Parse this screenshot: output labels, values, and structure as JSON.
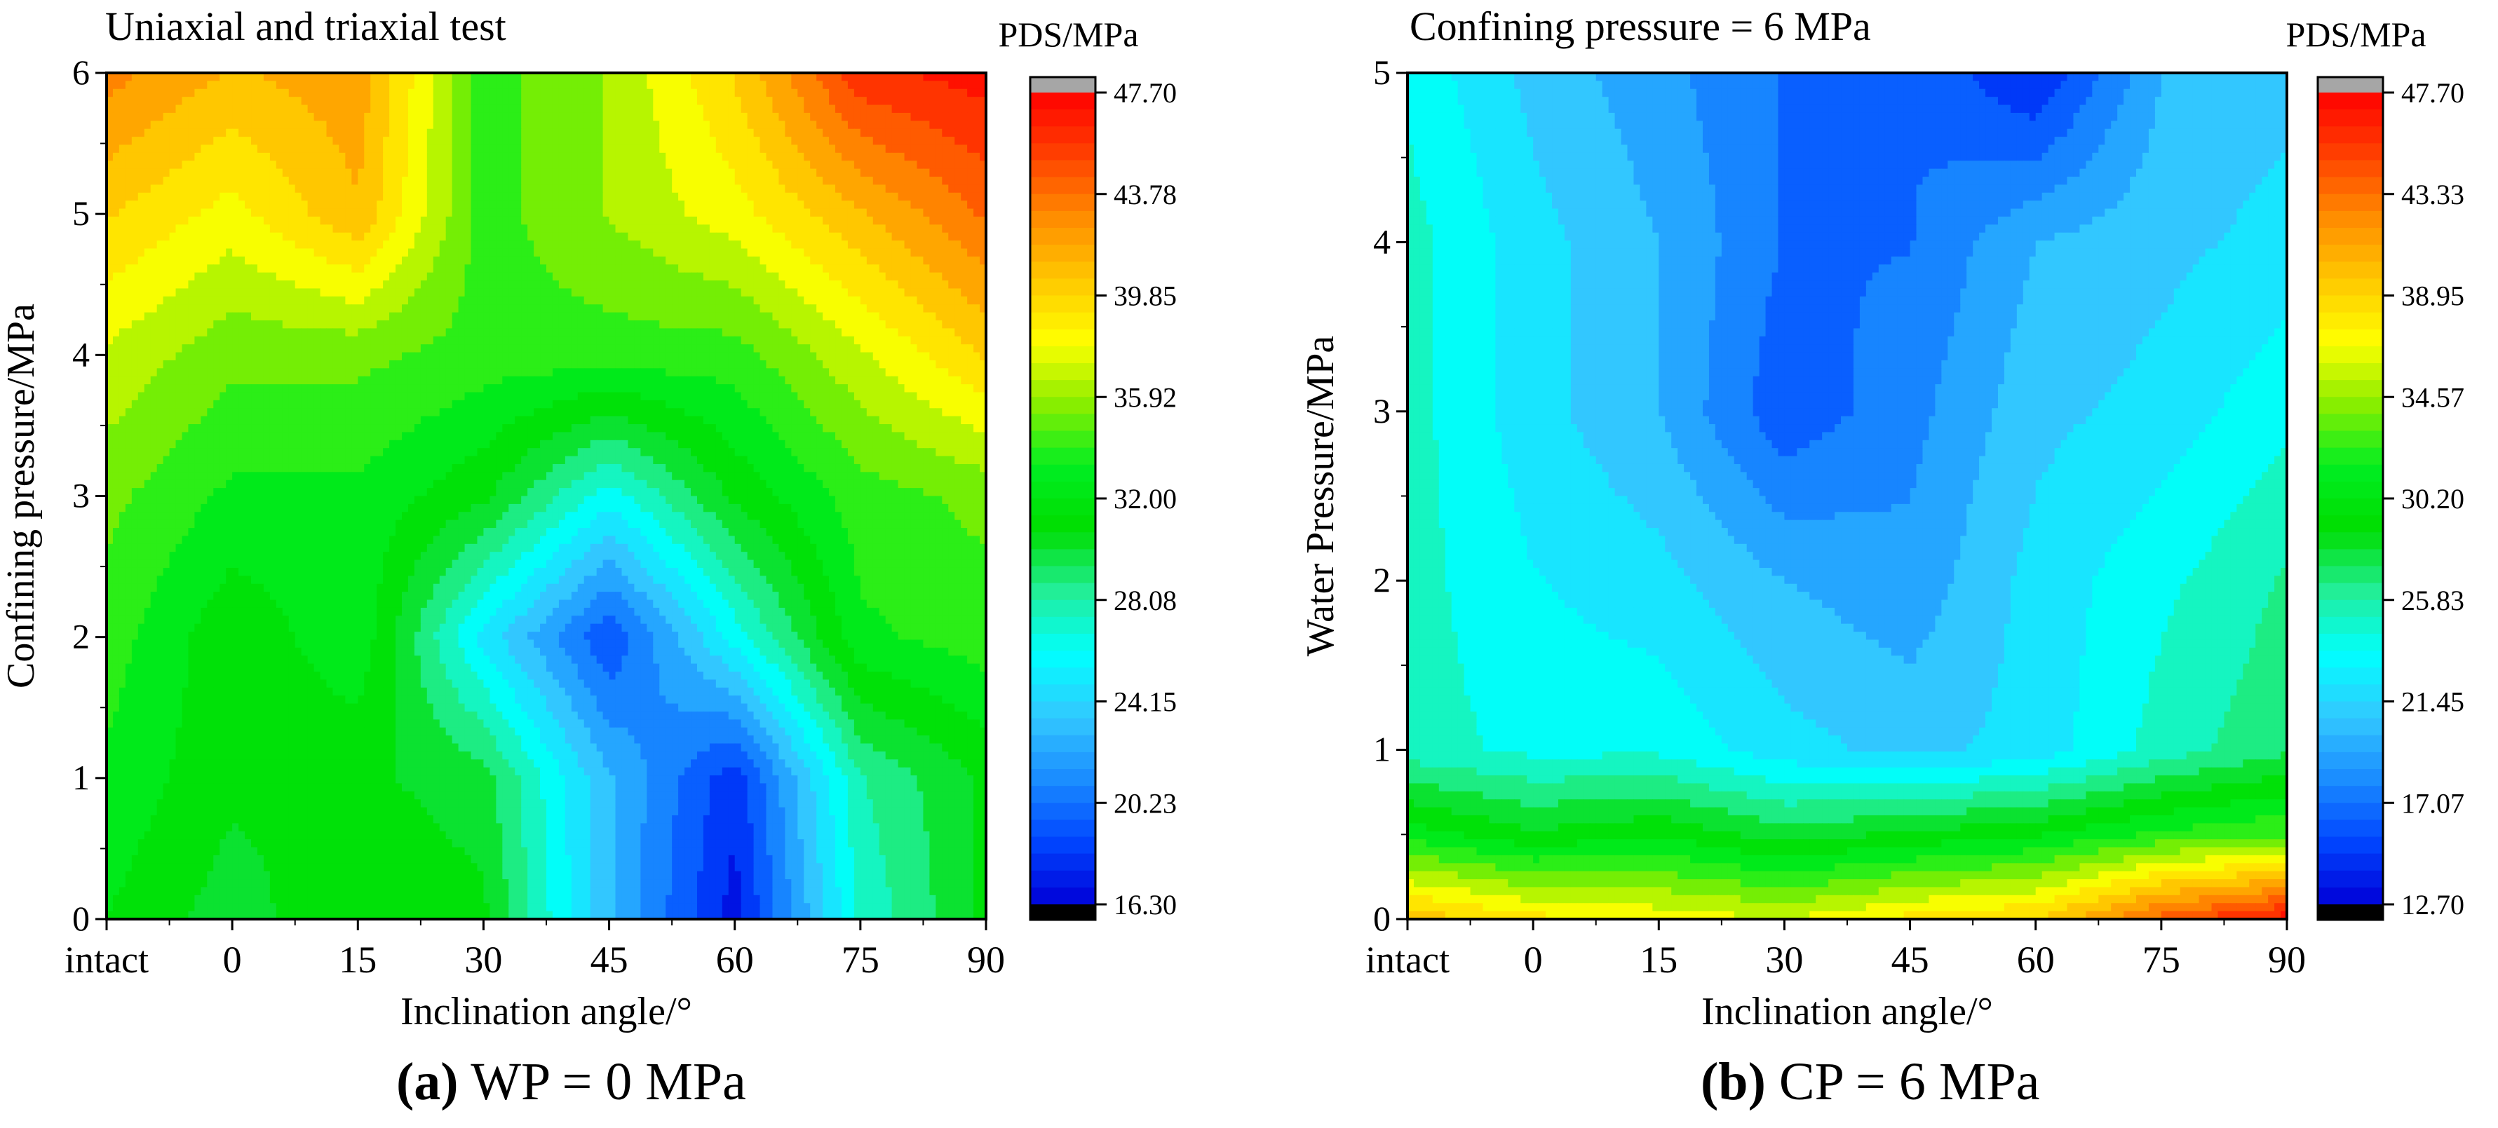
{
  "colors": {
    "axis": "#000000",
    "contour_line": "#555555",
    "over_color": "#a6a6a6",
    "under_color": "#000000",
    "colormap": [
      "#0000d8",
      "#0046ff",
      "#1a8cff",
      "#33c8ff",
      "#00ffff",
      "#22ee99",
      "#00dd00",
      "#00ee22",
      "#88ee00",
      "#ffff00",
      "#ffc800",
      "#ff8c00",
      "#ff4000",
      "#ff0000"
    ]
  },
  "chart_data": [
    {
      "type": "heatmap",
      "panel_title": "Uniaxial and triaxial test",
      "caption_letter": "(a)",
      "caption_rest": "WP = 0 MPa",
      "xlabel": "Inclination angle/°",
      "ylabel": "Confining pressure/MPa",
      "colorbar_label": "PDS/MPa",
      "x": [
        0,
        1,
        2,
        3,
        4,
        5,
        6
      ],
      "x_tick_labels": [
        "intact",
        "0",
        "15",
        "30",
        "45",
        "60",
        "75",
        "90"
      ],
      "x_tick_positions": [
        -15,
        0,
        15,
        30,
        45,
        60,
        75,
        90
      ],
      "xlim": [
        -15,
        90
      ],
      "ylim": [
        0,
        6
      ],
      "y_ticks": [
        0,
        1,
        2,
        3,
        4,
        5,
        6
      ],
      "colorbar_ticks": [
        47.7,
        43.78,
        39.85,
        35.92,
        32.0,
        28.08,
        24.15,
        20.23,
        16.3
      ],
      "colorbar_range": [
        16.3,
        47.7
      ],
      "grid": {
        "x": [
          -15,
          0,
          15,
          30,
          45,
          60,
          75,
          90
        ],
        "y": [
          0,
          1,
          2,
          3,
          4,
          5,
          6
        ],
        "z": [
          [
            32,
            30,
            32,
            31,
            23,
            17,
            27,
            31
          ],
          [
            33,
            31,
            31,
            30,
            23,
            18,
            28,
            31
          ],
          [
            34,
            31,
            33,
            25,
            19,
            26,
            33,
            34
          ],
          [
            35,
            33,
            33,
            31,
            26,
            31,
            34,
            35
          ],
          [
            37,
            35,
            35,
            34,
            34,
            34,
            37,
            40
          ],
          [
            40,
            38,
            41,
            34,
            36,
            38,
            41,
            44
          ],
          [
            43,
            41,
            42,
            34,
            36,
            40,
            46,
            47
          ]
        ]
      }
    },
    {
      "type": "heatmap",
      "panel_title": "Confining pressure = 6 MPa",
      "caption_letter": "(b)",
      "caption_rest": "CP = 6 MPa",
      "xlabel": "Inclination  angle/°",
      "ylabel": "Water Pressure/MPa",
      "colorbar_label": "PDS/MPa",
      "x_tick_labels": [
        "intact",
        "0",
        "15",
        "30",
        "45",
        "60",
        "75",
        "90"
      ],
      "x_tick_positions": [
        -15,
        0,
        15,
        30,
        45,
        60,
        75,
        90
      ],
      "xlim": [
        -15,
        90
      ],
      "ylim": [
        0,
        5
      ],
      "y_ticks": [
        0,
        1,
        2,
        3,
        4,
        5
      ],
      "colorbar_ticks": [
        47.7,
        43.33,
        38.95,
        34.57,
        30.2,
        25.83,
        21.45,
        17.07,
        12.7
      ],
      "colorbar_range": [
        12.7,
        47.7
      ],
      "grid": {
        "x": [
          -15,
          0,
          15,
          30,
          45,
          60,
          75,
          90
        ],
        "y": [
          0,
          0.5,
          1,
          2,
          3,
          4,
          5
        ],
        "z": [
          [
            40,
            38,
            37,
            36,
            38,
            39,
            44,
            47
          ],
          [
            31,
            29,
            30,
            28,
            29,
            30,
            32,
            33
          ],
          [
            25,
            24,
            24,
            22,
            21,
            22,
            25,
            27
          ],
          [
            25,
            23,
            22,
            20,
            19,
            22,
            24,
            26
          ],
          [
            25,
            22,
            20,
            16,
            18,
            21,
            22,
            24
          ],
          [
            25,
            22,
            20,
            17,
            17,
            20,
            21,
            22
          ],
          [
            24,
            21,
            19,
            17,
            17,
            14,
            20,
            21
          ]
        ]
      }
    }
  ]
}
